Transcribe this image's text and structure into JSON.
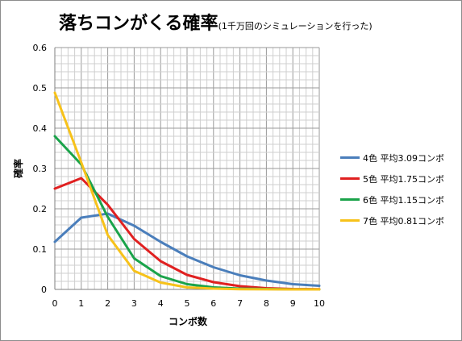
{
  "chart_data": {
    "type": "line",
    "title": "落ちコンがくる確率",
    "subtitle": "(1千万回のシミュレーションを行った)",
    "xlabel": "コンボ数",
    "ylabel": "確率",
    "x": [
      0,
      1,
      2,
      3,
      4,
      5,
      6,
      7,
      8,
      9,
      10
    ],
    "xlim": [
      0,
      10
    ],
    "ylim": [
      0,
      0.6
    ],
    "x_ticks": [
      "0",
      "1",
      "2",
      "3",
      "4",
      "5",
      "6",
      "7",
      "8",
      "9",
      "10"
    ],
    "y_ticks": [
      "0",
      "0.1",
      "0.2",
      "0.3",
      "0.4",
      "0.5",
      "0.6"
    ],
    "grid": true,
    "legend_position": "right",
    "series": [
      {
        "name": "4色 平均3.09コンボ",
        "color": "#4a7ebb",
        "values": [
          0.118,
          0.178,
          0.188,
          0.158,
          0.118,
          0.082,
          0.055,
          0.035,
          0.022,
          0.013,
          0.009
        ]
      },
      {
        "name": "5色 平均1.75コンボ",
        "color": "#e02020",
        "values": [
          0.25,
          0.276,
          0.21,
          0.125,
          0.07,
          0.036,
          0.018,
          0.008,
          0.003,
          0.001,
          0.0005
        ]
      },
      {
        "name": "6色 平均1.15コンボ",
        "color": "#1aa34a",
        "values": [
          0.38,
          0.31,
          0.18,
          0.077,
          0.033,
          0.013,
          0.005,
          0.002,
          0.001,
          0.0003,
          0.0001
        ]
      },
      {
        "name": "7色 平均0.81コンボ",
        "color": "#f7c21a",
        "values": [
          0.488,
          0.315,
          0.135,
          0.046,
          0.017,
          0.005,
          0.002,
          0.0005,
          0.0002,
          0.0001,
          0.0
        ]
      }
    ]
  }
}
